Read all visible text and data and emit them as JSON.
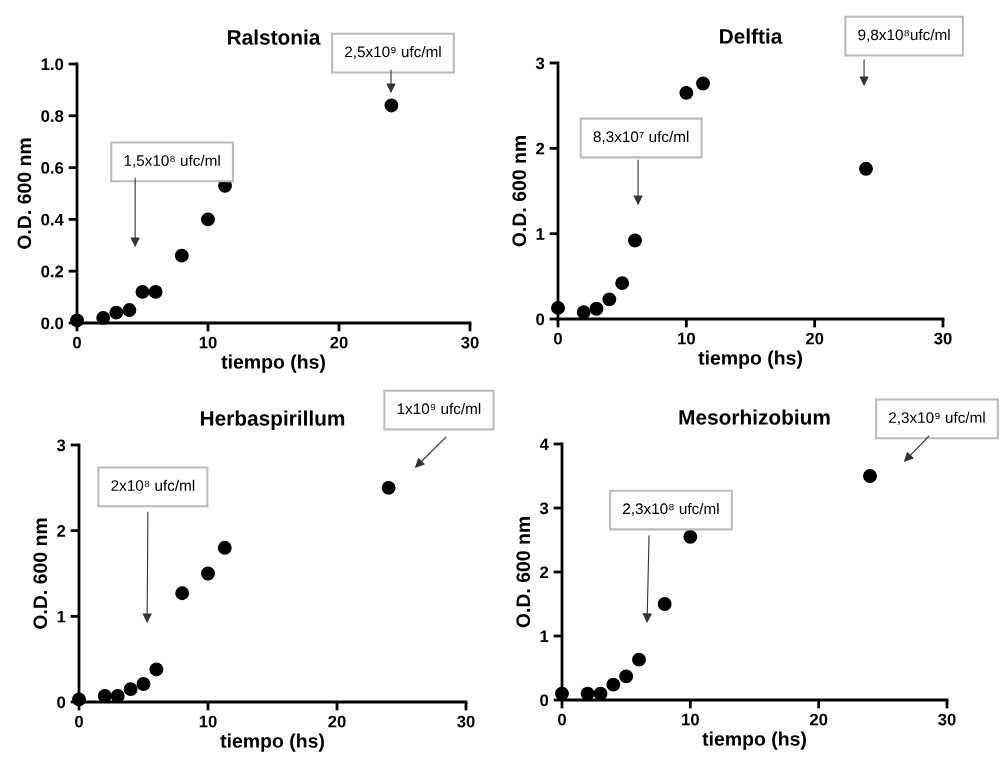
{
  "chart_data": [
    {
      "type": "scatter",
      "title": "Ralstonia",
      "xlabel": "tiempo (hs)",
      "ylabel": "O.D. 600 nm",
      "color": "#000000",
      "marker": "circle",
      "x": [
        0,
        2,
        3,
        4,
        5,
        6,
        8,
        10,
        11.3,
        24
      ],
      "values": [
        0.01,
        0.02,
        0.04,
        0.05,
        0.12,
        0.12,
        0.26,
        0.4,
        0.53,
        0.84
      ],
      "xlim": [
        0,
        30
      ],
      "xticks": [
        0,
        10,
        20,
        30
      ],
      "ylim": [
        0,
        1
      ],
      "yticks": [
        {
          "value": 0,
          "label": "0.0"
        },
        0.2,
        0.4,
        0.6,
        0.8,
        {
          "value": 1,
          "label": "1.0"
        }
      ],
      "annotations": [
        "1,5x10⁸ ufc/ml",
        "2,5x10⁹ ufc/ml"
      ]
    },
    {
      "type": "scatter",
      "title": "Delftia",
      "xlabel": "tiempo (hs)",
      "ylabel": "O.D. 600 nm",
      "color": "#000000",
      "marker": "circle",
      "x": [
        0,
        2,
        3,
        4,
        5,
        6,
        10,
        11.3,
        24
      ],
      "values": [
        0.13,
        0.08,
        0.12,
        0.23,
        0.42,
        0.92,
        2.65,
        2.76,
        1.76
      ],
      "xlim": [
        0,
        30
      ],
      "xticks": [
        0,
        10,
        20,
        30
      ],
      "ylim": [
        0,
        3
      ],
      "yticks": [
        0,
        1,
        2,
        3
      ],
      "annotations": [
        "8,3x10⁷ ufc/ml",
        "9,8x10⁸ufc/ml"
      ]
    },
    {
      "type": "scatter",
      "title": "Herbaspirillum",
      "xlabel": "tiempo (hs)",
      "ylabel": "O.D. 600 nm",
      "color": "#000000",
      "marker": "circle",
      "x": [
        0,
        2,
        3,
        4,
        5,
        6,
        8,
        10,
        11.3,
        24
      ],
      "values": [
        0.03,
        0.07,
        0.07,
        0.15,
        0.21,
        0.38,
        1.27,
        1.5,
        1.8,
        2.5
      ],
      "xlim": [
        0,
        30
      ],
      "xticks": [
        0,
        10,
        20,
        30
      ],
      "ylim": [
        0,
        3
      ],
      "yticks": [
        0,
        1,
        2,
        3
      ],
      "annotations": [
        "2x10⁸ ufc/ml",
        "1x10⁹ ufc/ml"
      ]
    },
    {
      "type": "scatter",
      "title": "Mesorhizobium",
      "xlabel": "tiempo (hs)",
      "ylabel": "O.D. 600 nm",
      "color": "#000000",
      "marker": "circle",
      "x": [
        0,
        2,
        3,
        4,
        5,
        6,
        8,
        10,
        24
      ],
      "values": [
        0.1,
        0.1,
        0.1,
        0.24,
        0.37,
        0.63,
        1.5,
        2.55,
        3.5
      ],
      "xlim": [
        0,
        30
      ],
      "xticks": [
        0,
        10,
        20,
        30
      ],
      "ylim": [
        0,
        4
      ],
      "yticks": [
        0,
        1,
        2,
        3,
        4
      ],
      "annotations": [
        "2,3x10⁸ ufc/ml",
        "2,3x10⁹ ufc/ml"
      ]
    }
  ]
}
